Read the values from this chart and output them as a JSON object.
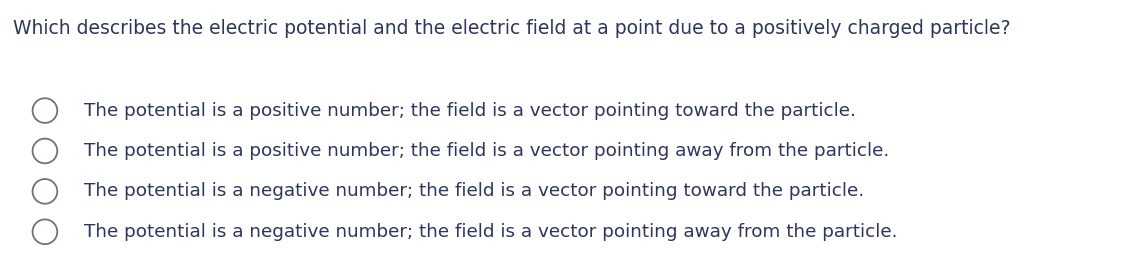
{
  "background_color": "#ffffff",
  "question": "Which describes the electric potential and the electric field at a point due to a positively charged particle?",
  "question_color": "#2d3561",
  "question_fontsize": 13.5,
  "options": [
    "The potential is a positive number; the field is a vector pointing toward the particle.",
    "The potential is a positive number; the field is a vector pointing away from the particle.",
    "The potential is a negative number; the field is a vector pointing toward the particle.",
    "The potential is a negative number; the field is a vector pointing away from the particle."
  ],
  "options_color": "#2d3561",
  "options_fontsize": 13.2,
  "circle_color": "#6b7280",
  "circle_linewidth": 1.3
}
